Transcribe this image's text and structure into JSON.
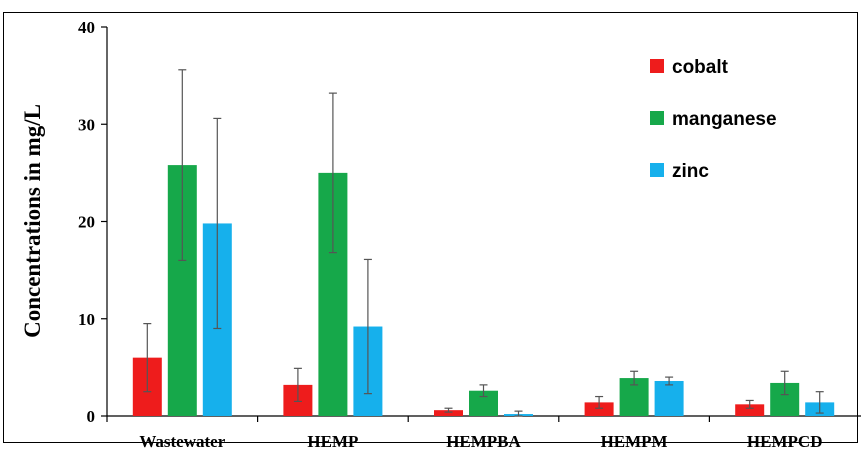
{
  "chart_data": {
    "type": "bar",
    "title": "",
    "xlabel": "",
    "ylabel": "Concentrations in mg/L",
    "ylim": [
      0,
      40
    ],
    "yticks": [
      0,
      10,
      20,
      30,
      40
    ],
    "categories": [
      "Wastewater",
      "HEMP",
      "HEMPBA",
      "HEMPM",
      "HEMPCD"
    ],
    "series": [
      {
        "name": "cobalt",
        "color": "#ee1c1c",
        "values": [
          6.0,
          3.2,
          0.6,
          1.4,
          1.2
        ],
        "errors": [
          3.5,
          1.7,
          0.2,
          0.6,
          0.4
        ]
      },
      {
        "name": "manganese",
        "color": "#16a84a",
        "values": [
          25.8,
          25.0,
          2.6,
          3.9,
          3.4
        ],
        "errors": [
          9.8,
          8.2,
          0.6,
          0.7,
          1.2
        ]
      },
      {
        "name": "zinc",
        "color": "#16b0ec",
        "values": [
          19.8,
          9.2,
          0.2,
          3.6,
          1.4
        ],
        "errors": [
          10.8,
          6.9,
          0.3,
          0.4,
          1.1
        ]
      }
    ],
    "legend_position": "top-right",
    "grid": false
  }
}
